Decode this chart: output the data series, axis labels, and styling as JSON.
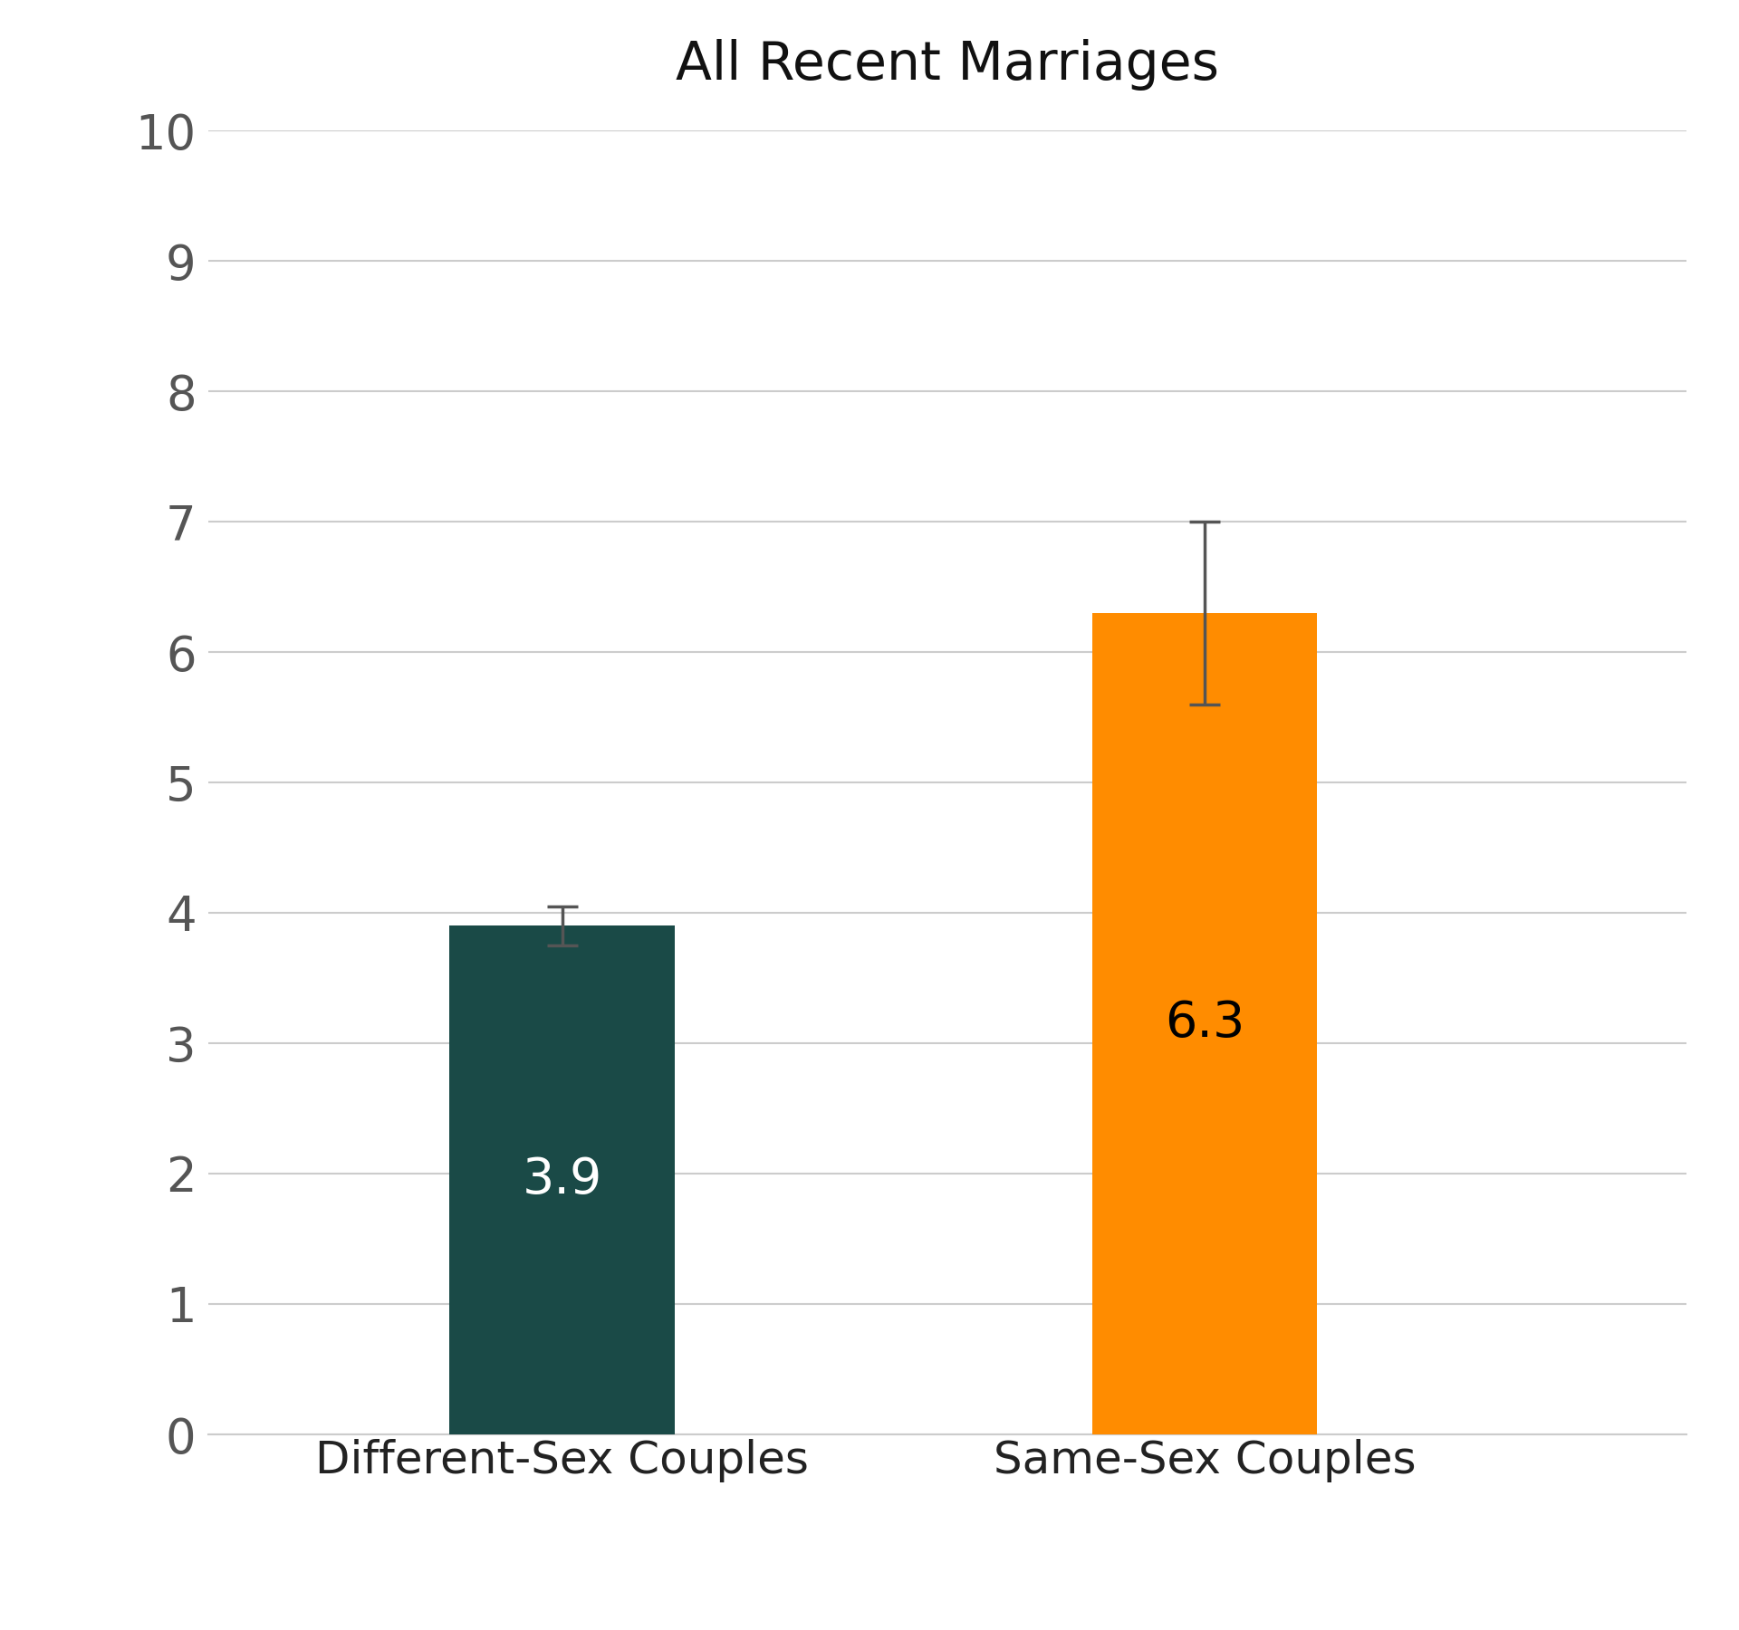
{
  "title": "All Recent Marriages",
  "categories": [
    "Different-Sex Couples",
    "Same-Sex Couples"
  ],
  "values": [
    3.9,
    6.3
  ],
  "errors": [
    0.15,
    0.7
  ],
  "bar_colors": [
    "#1a4a47",
    "#ff8c00"
  ],
  "bar_labels": [
    "3.9",
    "6.3"
  ],
  "bar_label_colors": [
    "#ffffff",
    "#000000"
  ],
  "ylim": [
    0,
    10
  ],
  "yticks": [
    0,
    1,
    2,
    3,
    4,
    5,
    6,
    7,
    8,
    9,
    10
  ],
  "title_fontsize": 42,
  "tick_fontsize": 38,
  "xlabel_fontsize": 36,
  "label_fontsize": 40,
  "background_color": "#ffffff",
  "grid_color": "#cccccc",
  "error_color": "#555555",
  "error_linewidth": 2.5,
  "error_capsize": 12,
  "bar_width": 0.35,
  "x_positions": [
    1,
    2
  ],
  "xlim": [
    0.45,
    2.75
  ]
}
